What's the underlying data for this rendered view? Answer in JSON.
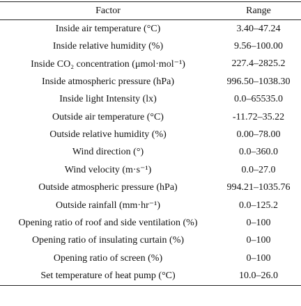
{
  "table": {
    "columns": [
      "Factor",
      "Range"
    ],
    "rows": [
      [
        "Inside air temperature (°C)",
        "3.40–47.24"
      ],
      [
        "Inside relative humidity (%)",
        "9.56–100.00"
      ],
      [
        "Inside CO₂ concentration (μmol·mol⁻¹)",
        "227.4–2825.2"
      ],
      [
        "Inside atmospheric pressure (hPa)",
        "996.50–1038.30"
      ],
      [
        "Inside light Intensity (lx)",
        "0.0–65535.0"
      ],
      [
        "Outside air temperature (°C)",
        "-11.72–35.22"
      ],
      [
        "Outside relative humidity (%)",
        "0.00–78.00"
      ],
      [
        "Wind direction (°)",
        "0.0–360.0"
      ],
      [
        "Wind velocity (m·s⁻¹)",
        "0.0–27.0"
      ],
      [
        "Outside atmospheric pressure (hPa)",
        "994.21–1035.76"
      ],
      [
        "Outside rainfall (mm·hr⁻¹)",
        "0.0–125.2"
      ],
      [
        "Opening ratio of roof and side ventilation (%)",
        "0–100"
      ],
      [
        "Opening ratio of insulating curtain (%)",
        "0–100"
      ],
      [
        "Opening ratio of screen (%)",
        "0–100"
      ],
      [
        "Set temperature of heat pump (°C)",
        "10.0–26.0"
      ]
    ]
  }
}
